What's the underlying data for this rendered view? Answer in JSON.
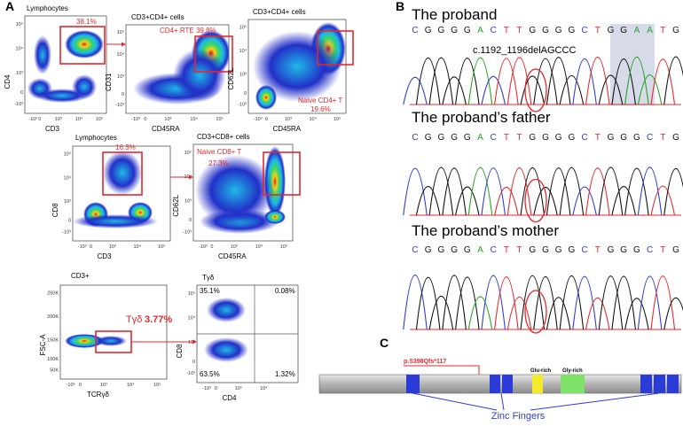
{
  "panel_a": {
    "label": "A",
    "log_ticks": [
      "-10³",
      "0",
      "10³",
      "10⁴",
      "10⁵"
    ],
    "fsc_ticks": [
      "50K",
      "100K",
      "150K",
      "200K",
      "250K"
    ],
    "plots": [
      {
        "title": "Lymphocytes",
        "x_label": "CD3",
        "y_label": "CD4",
        "gate_labels": [
          "38.1%"
        ]
      },
      {
        "title": "CD3+CD4+ cells",
        "x_label": "CD45RA",
        "y_label": "CD31",
        "gate_labels": [
          "CD4+ RTE 39.8%"
        ]
      },
      {
        "title": "CD3+CD4+ cells",
        "x_label": "CD45RA",
        "y_label": "CD62L",
        "gate_labels": [
          "Naive CD4+ T",
          "19.6%"
        ]
      },
      {
        "title": "Lymphocytes",
        "x_label": "CD3",
        "y_label": "CD8",
        "gate_labels": [
          "16.3%"
        ]
      },
      {
        "title": "CD3+CD8+ cells",
        "x_label": "CD45RA",
        "y_label": "CD62L",
        "gate_labels": [
          "Naive CD8+ T",
          "27.3%"
        ]
      },
      {
        "title": "CD3+",
        "x_label": "TCRγδ",
        "y_label": "FSC-A",
        "gate_labels": [
          "Tγδ",
          "3.77%"
        ]
      },
      {
        "title": "Tγδ",
        "x_label": "CD4",
        "y_label": "CD8",
        "gate_labels": [
          "35.1%",
          "0.08%",
          "63.5%",
          "1.32%"
        ]
      }
    ]
  },
  "panel_b": {
    "label": "B",
    "mutation": "c.1192_1196delAGCCC",
    "tracks": [
      {
        "title": "The proband",
        "bases": [
          "C",
          "G",
          "G",
          "G",
          "G",
          "A",
          "C",
          "T",
          "T",
          "G",
          "G",
          "G",
          "G",
          "C",
          "T",
          "G",
          "G",
          "A",
          "A",
          "T",
          "G"
        ]
      },
      {
        "title": "The proband’s father",
        "bases": [
          "C",
          "G",
          "G",
          "G",
          "G",
          "A",
          "C",
          "T",
          "T",
          "G",
          "G",
          "G",
          "G",
          "C",
          "T",
          "G",
          "G",
          "G",
          "C",
          "T",
          "G"
        ]
      },
      {
        "title": "The proband’s mother",
        "bases": [
          "C",
          "G",
          "G",
          "G",
          "G",
          "A",
          "C",
          "T",
          "T",
          "G",
          "G",
          "G",
          "G",
          "C",
          "T",
          "G",
          "G",
          "G",
          "C",
          "T",
          "G"
        ]
      }
    ]
  },
  "panel_c": {
    "label": "C",
    "mutation": "p.S398Qfs*117",
    "glu": "Glu-rich",
    "gly": "Gly-rich",
    "zinc": "Zinc Fingers"
  }
}
